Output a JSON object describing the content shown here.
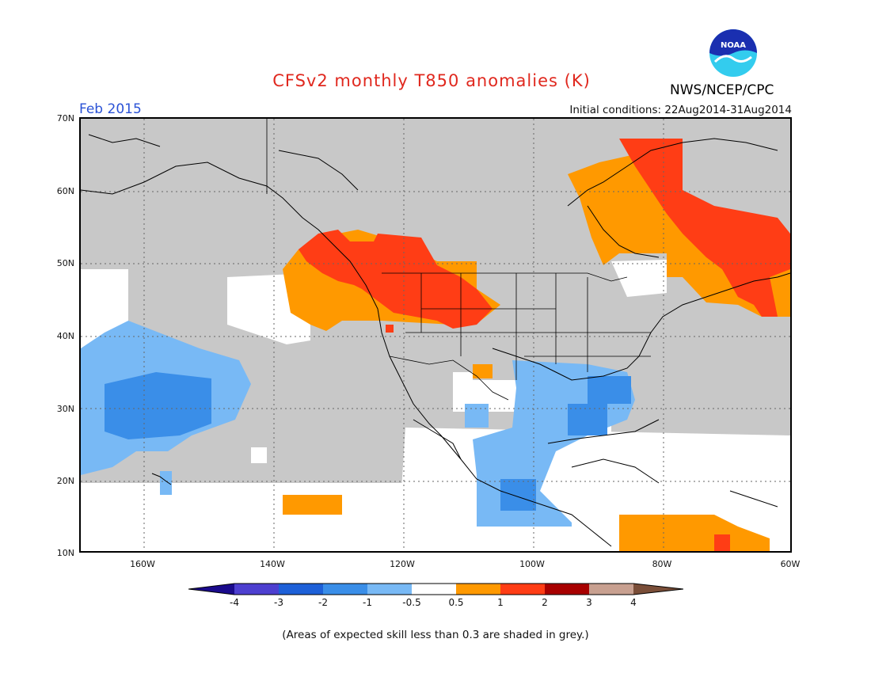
{
  "title": "CFSv2 monthly T850 anomalies (K)",
  "period": "Feb 2015",
  "initial_conditions": "Initial conditions: 22Aug2014-31Aug2014",
  "agency": "NWS/NCEP/CPC",
  "logo_text": "NOAA",
  "lat_ticks": [
    "70N",
    "60N",
    "50N",
    "40N",
    "30N",
    "20N",
    "10N"
  ],
  "lon_ticks": [
    "160W",
    "140W",
    "120W",
    "100W",
    "80W",
    "60W"
  ],
  "colorbar": {
    "labels": [
      "-4",
      "-3",
      "-2",
      "-1",
      "-0.5",
      "0.5",
      "1",
      "2",
      "3",
      "4"
    ],
    "colors": [
      "#1a0a8c",
      "#4d3fd0",
      "#1d60d8",
      "#3a8ee8",
      "#78b9f5",
      "#ffffff",
      "#ff9900",
      "#ff3d15",
      "#a80000",
      "#c8a090",
      "#7a4e38"
    ]
  },
  "footnote": "(Areas of expected skill less than 0.3 are shaded in grey.)",
  "colors": {
    "grey": "#c8c8c8",
    "orange": "#ff9900",
    "red": "#ff3d15",
    "light_blue": "#78b9f5",
    "blue": "#3a8ee8",
    "medium_blue": "#1d60d8"
  }
}
